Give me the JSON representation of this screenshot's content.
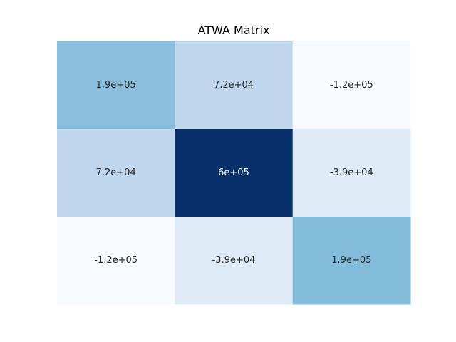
{
  "chart_data": {
    "type": "heatmap",
    "title": "ATWA Matrix",
    "xlabel": "",
    "ylabel": "",
    "colormap": "Blues",
    "color_scale": {
      "low": "#f7fbff",
      "high": "#08306b"
    },
    "grid": false,
    "colorbar": false,
    "rows": [
      {
        "values": [
          190000,
          72000,
          -120000
        ],
        "labels": [
          "1.9e+05",
          "7.2e+04",
          "-1.2e+05"
        ],
        "colors": [
          "#89bedc",
          "#c0d7ed",
          "#f7fbff"
        ]
      },
      {
        "values": [
          72000,
          600000,
          -39000
        ],
        "labels": [
          "7.2e+04",
          "6e+05",
          "-3.9e+04"
        ],
        "colors": [
          "#c0d7ed",
          "#08306b",
          "#deebf7"
        ]
      },
      {
        "values": [
          -120000,
          -39000,
          190000
        ],
        "labels": [
          "-1.2e+05",
          "-3.9e+04",
          "1.9e+05"
        ],
        "colors": [
          "#f7fbff",
          "#deebf7",
          "#84bcdb"
        ]
      }
    ]
  }
}
